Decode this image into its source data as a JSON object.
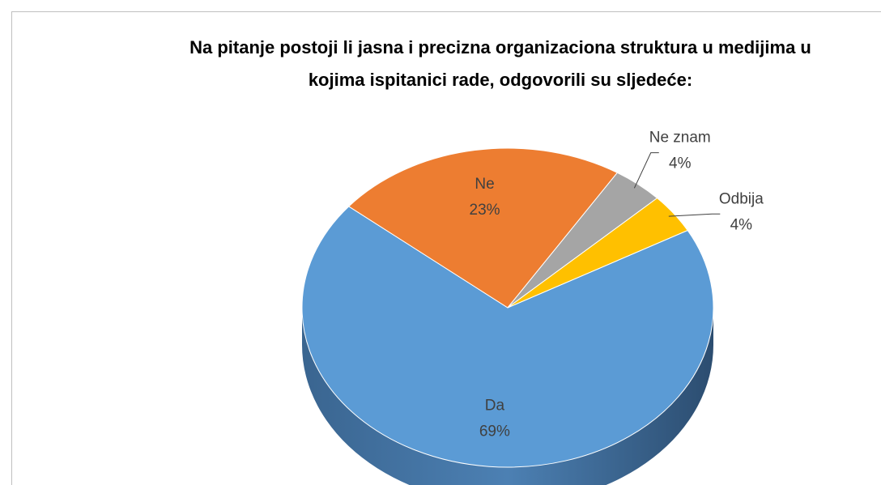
{
  "chart_data": {
    "type": "pie",
    "title": [
      "Na pitanje postoji li jasna i precizna organizaciona struktura u medijima u",
      "kojima ispitanici rade, odgovorili su sljedeće:"
    ],
    "categories": [
      "Da",
      "Ne",
      "Ne znam",
      "Odbija"
    ],
    "values": [
      69,
      23,
      4,
      4
    ],
    "value_labels": [
      "69%",
      "23%",
      "4%",
      "4%"
    ],
    "colors": [
      "#5b9bd5",
      "#ed7d31",
      "#a5a5a5",
      "#ffc000"
    ]
  }
}
